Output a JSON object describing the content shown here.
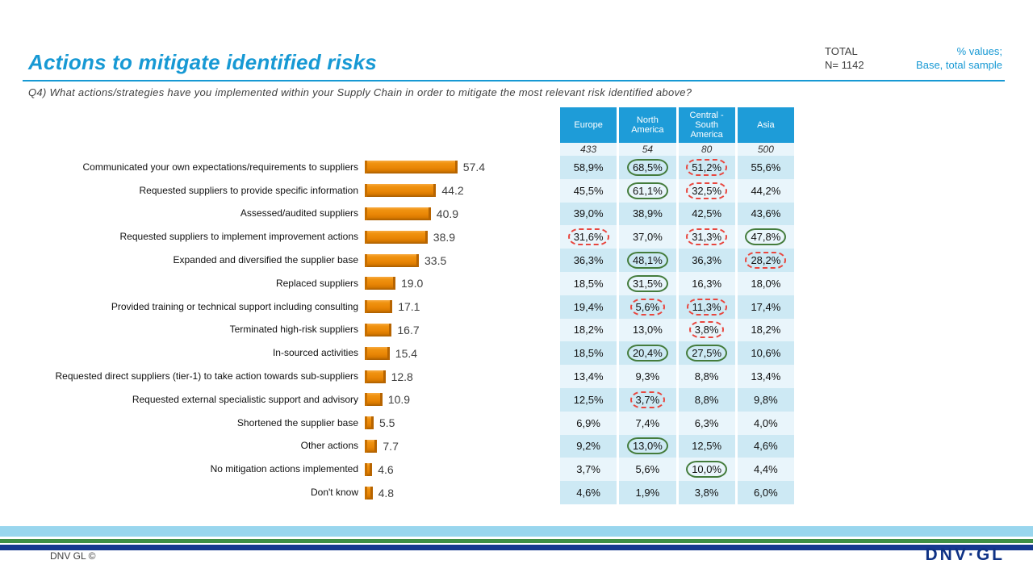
{
  "header": {
    "title": "Actions to mitigate identified risks",
    "total_label": "TOTAL",
    "total_n": "N= 1142",
    "note_line1": "% values;",
    "note_line2": "Base, total sample",
    "question": "Q4) What actions/strategies have you implemented within your Supply Chain in order to mitigate the most relevant risk identified above?"
  },
  "colors": {
    "accent_blue": "#1799D4",
    "table_header_blue": "#1E9CD8",
    "row_light_blue": "#CDE9F4",
    "row_lighter_blue": "#E9F5FB",
    "bar_orange": "#EA8606",
    "circle_green": "#447C3C",
    "circle_red": "#E8473F",
    "footer_sky": "#99D6EE",
    "footer_green": "#3F8F46",
    "footer_navy": "#16388F"
  },
  "chart_data": {
    "type": "bar",
    "orientation": "horizontal",
    "title": "Actions to mitigate identified risks",
    "xlabel": "",
    "ylabel": "",
    "xlim": [
      0,
      60
    ],
    "value_format": "percent of total sample",
    "categories": [
      "Communicated your own expectations/requirements to suppliers",
      "Requested suppliers to provide specific information",
      "Assessed/audited suppliers",
      "Requested suppliers to implement improvement actions",
      "Expanded and diversified the supplier base",
      "Replaced suppliers",
      "Provided training or technical support including consulting",
      "Terminated high-risk suppliers",
      "In-sourced activities",
      "Requested direct suppliers (tier-1) to take action towards sub-suppliers",
      "Requested external specialistic support and advisory",
      "Shortened the supplier base",
      "Other actions",
      "No mitigation actions implemented",
      "Don't know"
    ],
    "values": [
      57.4,
      44.2,
      40.9,
      38.9,
      33.5,
      19.0,
      17.1,
      16.7,
      15.4,
      12.8,
      10.9,
      5.5,
      7.7,
      4.6,
      4.8
    ],
    "value_labels": [
      "57.4",
      "44.2",
      "40.9",
      "38.9",
      "33.5",
      "19.0",
      "17.1",
      "16.7",
      "15.4",
      "12.8",
      "10.9",
      "5.5",
      "7.7",
      "4.6",
      "4.8"
    ],
    "table": {
      "columns": [
        "Europe",
        "North America",
        "Central - South America",
        "Asia"
      ],
      "bases": [
        "433",
        "54",
        "80",
        "500"
      ],
      "mark_legend": {
        "green": "significantly higher (solid green oval)",
        "red": "significantly lower (dashed red oval)"
      },
      "rows": [
        {
          "values": [
            "58,9%",
            "68,5%",
            "51,2%",
            "55,6%"
          ],
          "marks": [
            null,
            "green",
            "red",
            null
          ]
        },
        {
          "values": [
            "45,5%",
            "61,1%",
            "32,5%",
            "44,2%"
          ],
          "marks": [
            null,
            "green",
            "red",
            null
          ]
        },
        {
          "values": [
            "39,0%",
            "38,9%",
            "42,5%",
            "43,6%"
          ],
          "marks": [
            null,
            null,
            null,
            null
          ]
        },
        {
          "values": [
            "31,6%",
            "37,0%",
            "31,3%",
            "47,8%"
          ],
          "marks": [
            "red",
            null,
            "red",
            "green"
          ]
        },
        {
          "values": [
            "36,3%",
            "48,1%",
            "36,3%",
            "28,2%"
          ],
          "marks": [
            null,
            "green",
            null,
            "red"
          ]
        },
        {
          "values": [
            "18,5%",
            "31,5%",
            "16,3%",
            "18,0%"
          ],
          "marks": [
            null,
            "green",
            null,
            null
          ]
        },
        {
          "values": [
            "19,4%",
            "5,6%",
            "11,3%",
            "17,4%"
          ],
          "marks": [
            null,
            "red",
            "red",
            null
          ]
        },
        {
          "values": [
            "18,2%",
            "13,0%",
            "3,8%",
            "18,2%"
          ],
          "marks": [
            null,
            null,
            "red",
            null
          ]
        },
        {
          "values": [
            "18,5%",
            "20,4%",
            "27,5%",
            "10,6%"
          ],
          "marks": [
            null,
            "green",
            "green",
            null
          ]
        },
        {
          "values": [
            "13,4%",
            "9,3%",
            "8,8%",
            "13,4%"
          ],
          "marks": [
            null,
            null,
            null,
            null
          ]
        },
        {
          "values": [
            "12,5%",
            "3,7%",
            "8,8%",
            "9,8%"
          ],
          "marks": [
            null,
            "red",
            null,
            null
          ]
        },
        {
          "values": [
            "6,9%",
            "7,4%",
            "6,3%",
            "4,0%"
          ],
          "marks": [
            null,
            null,
            null,
            null
          ]
        },
        {
          "values": [
            "9,2%",
            "13,0%",
            "12,5%",
            "4,6%"
          ],
          "marks": [
            null,
            "green",
            null,
            null
          ]
        },
        {
          "values": [
            "3,7%",
            "5,6%",
            "10,0%",
            "4,4%"
          ],
          "marks": [
            null,
            null,
            "green",
            null
          ]
        },
        {
          "values": [
            "4,6%",
            "1,9%",
            "3,8%",
            "6,0%"
          ],
          "marks": [
            null,
            null,
            null,
            null
          ]
        }
      ]
    }
  },
  "footer": {
    "copyright": "DNV GL ©",
    "logo": "DNV·GL"
  }
}
